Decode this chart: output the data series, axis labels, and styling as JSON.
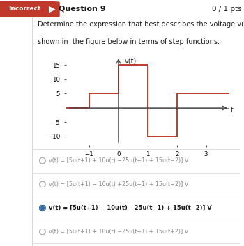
{
  "title_badge": "Incorrect",
  "question_number": "Question 9",
  "score": "0 / 1 pts",
  "question_text_1": "Determine the expression that best describes the voltage v(t) behavior",
  "question_text_2": "shown in  the figure below in terms of step functions.",
  "graph": {
    "xlabel": "t",
    "ylabel": "v(t)",
    "xlim": [
      -1.8,
      3.8
    ],
    "ylim": [
      -13,
      18
    ],
    "xticks": [
      -1,
      0,
      1,
      2,
      3
    ],
    "yticks": [
      -10,
      -5,
      5,
      10,
      15
    ],
    "segments": [
      {
        "x": [
          -1.8,
          -1
        ],
        "y": [
          0,
          0
        ]
      },
      {
        "x": [
          -1,
          -1
        ],
        "y": [
          0,
          5
        ]
      },
      {
        "x": [
          -1,
          0
        ],
        "y": [
          5,
          5
        ]
      },
      {
        "x": [
          0,
          0
        ],
        "y": [
          5,
          15
        ]
      },
      {
        "x": [
          0,
          1
        ],
        "y": [
          15,
          15
        ]
      },
      {
        "x": [
          1,
          1
        ],
        "y": [
          15,
          -10
        ]
      },
      {
        "x": [
          1,
          2
        ],
        "y": [
          -10,
          -10
        ]
      },
      {
        "x": [
          2,
          2
        ],
        "y": [
          -10,
          5
        ]
      },
      {
        "x": [
          2,
          3.8
        ],
        "y": [
          5,
          5
        ]
      }
    ],
    "line_color": "#c0392b",
    "line_width": 1.4
  },
  "options": [
    {
      "text": "v(t) = [5u(t+1) + 10u(t) −25u(t−1) + 15u(t−2)] V",
      "selected": false
    },
    {
      "text": "v(t) = [5u(t+1) − 10u(t) +25u(t−1) + 15u(t−2)] V",
      "selected": false
    },
    {
      "text": "v(t) = [5u(t+1) − 10u(t) −25u(t−1) + 15u(t−2)] V",
      "selected": true
    },
    {
      "text": "v(t) = [5u(t+1) + 10u(t) −25u(t−1) + 15u(t+2)] V",
      "selected": false
    }
  ],
  "badge_color": "#c0392b",
  "badge_text_color": "#ffffff",
  "top_bar_color": "#f5f5f5",
  "background_color": "#ffffff",
  "content_bg": "#ffffff",
  "left_border_color": "#cccccc",
  "selected_text_color": "#1a1a1a",
  "unselected_text_color": "#888888",
  "selected_dot_color": "#3a6ea8",
  "separator_color": "#dddddd"
}
